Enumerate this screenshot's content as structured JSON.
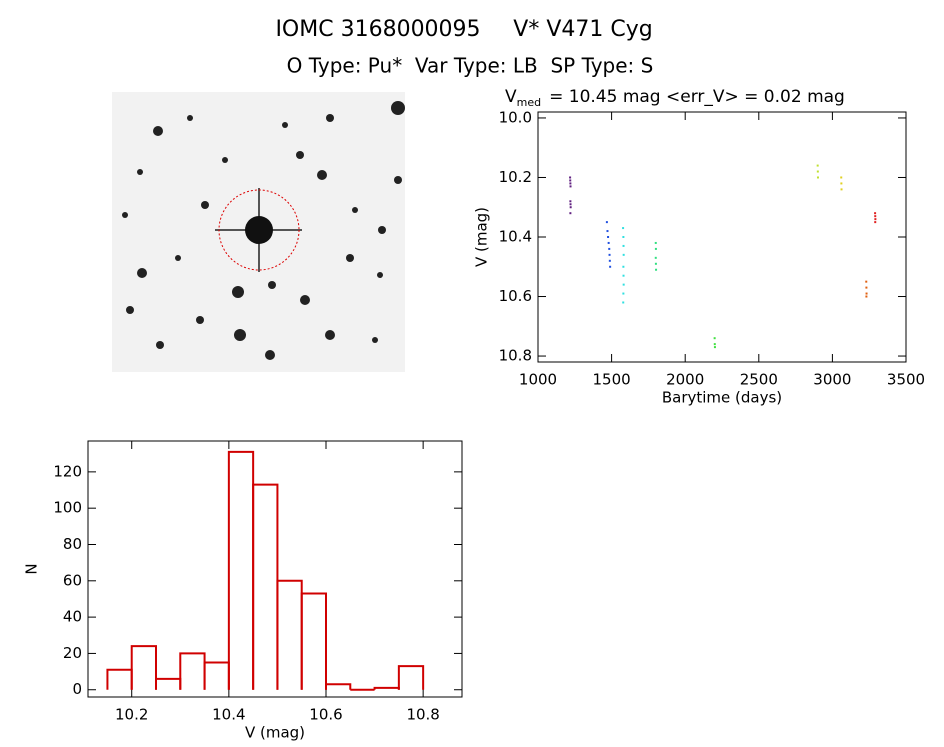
{
  "header": {
    "title_left": "IOMC 3168000095",
    "title_right": "V* V471 Cyg",
    "subtitle": "O Type: Pu*  Var Type: LB  SP Type: S"
  },
  "chart_data": [
    {
      "type": "scatter",
      "title_parts": [
        "V",
        "med",
        "= 10.45 mag <err_V> = 0.02 mag"
      ],
      "x_label": "Barytime (days)",
      "y_label": "V (mag)",
      "xlim": [
        1000,
        3500
      ],
      "xticks": [
        1000,
        1500,
        2000,
        2500,
        3000,
        3500
      ],
      "ylim": [
        9.98,
        10.82
      ],
      "y_inverted": true,
      "yticks": [
        {
          "value": 10,
          "label": "10.0"
        },
        10.2,
        10.4,
        10.6,
        10.8
      ],
      "series": [
        {
          "color": "#602080",
          "x": [
            1218,
            1219,
            1220,
            1221,
            1220,
            1221,
            1222,
            1220
          ],
          "values": [
            10.2,
            10.21,
            10.22,
            10.23,
            10.28,
            10.29,
            10.3,
            10.32
          ]
        },
        {
          "color": "#2050e0",
          "x": [
            1468,
            1472,
            1476,
            1480,
            1484,
            1486,
            1488,
            1490
          ],
          "values": [
            10.35,
            10.38,
            10.4,
            10.42,
            10.44,
            10.46,
            10.48,
            10.5
          ]
        },
        {
          "color": "#30e0e0",
          "x": [
            1578,
            1580,
            1581,
            1582,
            1580,
            1581,
            1582,
            1580,
            1579
          ],
          "values": [
            10.37,
            10.4,
            10.43,
            10.46,
            10.5,
            10.53,
            10.56,
            10.59,
            10.62
          ]
        },
        {
          "color": "#30e080",
          "x": [
            1800,
            1801,
            1800,
            1801,
            1802
          ],
          "values": [
            10.42,
            10.44,
            10.47,
            10.49,
            10.51
          ]
        },
        {
          "color": "#40e040",
          "x": [
            2200,
            2201,
            2202
          ],
          "values": [
            10.74,
            10.76,
            10.77
          ]
        },
        {
          "color": "#c0e030",
          "x": [
            2900,
            2901,
            2902
          ],
          "values": [
            10.16,
            10.18,
            10.2
          ]
        },
        {
          "color": "#e0d020",
          "x": [
            3060,
            3061,
            3062
          ],
          "values": [
            10.2,
            10.22,
            10.24
          ]
        },
        {
          "color": "#e06010",
          "x": [
            3230,
            3231,
            3232,
            3231
          ],
          "values": [
            10.55,
            10.57,
            10.59,
            10.6
          ]
        },
        {
          "color": "#e02020",
          "x": [
            3290,
            3291,
            3292,
            3291
          ],
          "values": [
            10.32,
            10.33,
            10.34,
            10.35
          ]
        }
      ]
    },
    {
      "type": "histogram",
      "x_label": "V (mag)",
      "y_label": "N",
      "color": "#d00000",
      "bins": [
        10.15,
        10.2,
        10.25,
        10.3,
        10.35,
        10.4,
        10.45,
        10.5,
        10.55,
        10.6,
        10.65,
        10.7,
        10.75,
        10.8
      ],
      "values": [
        11,
        24,
        6,
        20,
        15,
        131,
        113,
        60,
        53,
        3,
        0,
        1,
        13
      ],
      "xlim": [
        10.11,
        10.88
      ],
      "xticks": [
        10.2,
        10.4,
        10.6,
        10.8
      ],
      "ylim": [
        -4,
        137
      ],
      "yticks": [
        0,
        20,
        40,
        60,
        80,
        100,
        120
      ]
    }
  ]
}
